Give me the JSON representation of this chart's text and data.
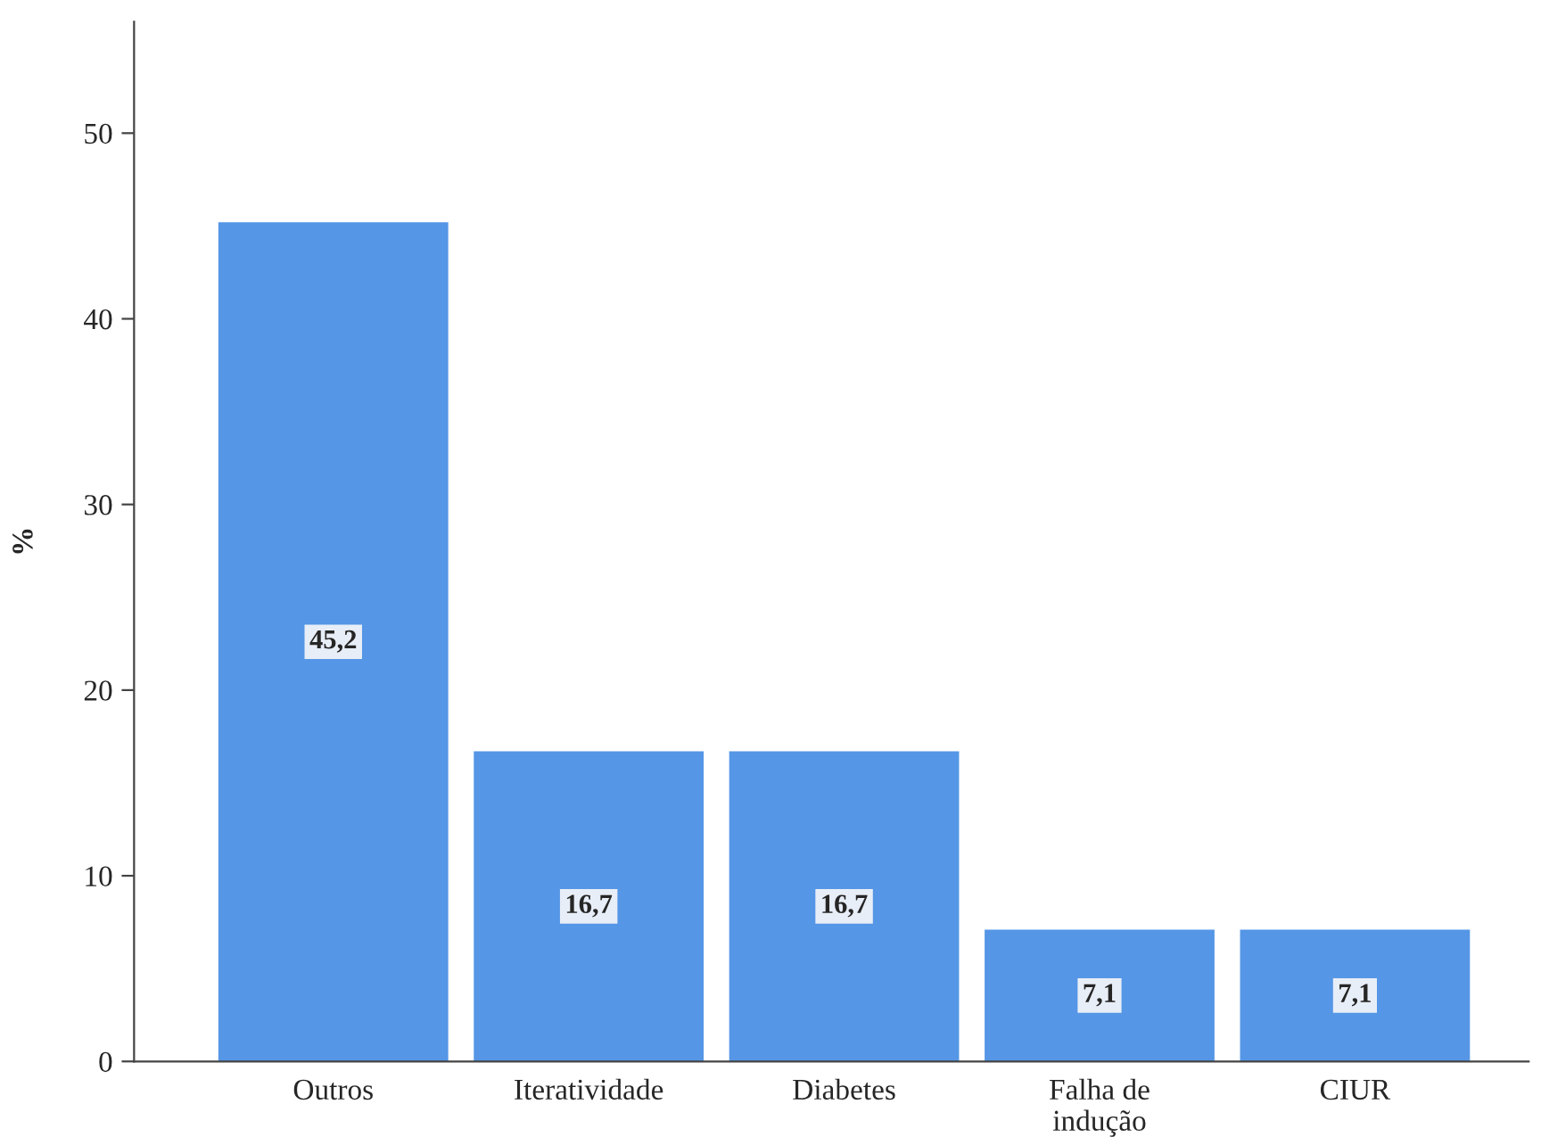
{
  "chart_data": {
    "type": "bar",
    "ylabel": "%",
    "categories": [
      "Outros",
      "Iteratividade",
      "Diabetes",
      "Falha de\nindução",
      "CIUR"
    ],
    "values": [
      45.2,
      16.7,
      16.7,
      7.1,
      7.1
    ],
    "value_labels": [
      "45,2",
      "16,7",
      "16,7",
      "7,1",
      "7,1"
    ],
    "color": "#5596e6",
    "ylim": [
      0,
      56
    ],
    "yticks": [
      0,
      10,
      20,
      30,
      40,
      50
    ],
    "grid": false,
    "legend": false
  }
}
